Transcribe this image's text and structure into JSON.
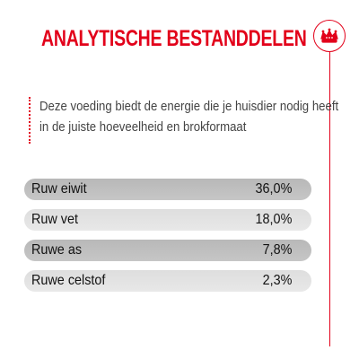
{
  "header": {
    "title": "ANALYTISCHE BESTANDDELEN",
    "logo_icon": "crown-icon",
    "accent_color": "#e2001a"
  },
  "intro": {
    "line1": "Deze voeding biedt de energie die je huisdier nodig heeft",
    "line2": "in de juiste hoeveelheid en brokformaat"
  },
  "constituents": [
    {
      "label": "Ruw eiwit",
      "value": "36,0%"
    },
    {
      "label": "Ruw vet",
      "value": "18,0%"
    },
    {
      "label": "Ruwe as",
      "value": "7,8%"
    },
    {
      "label": "Ruwe celstof",
      "value": "2,3%"
    }
  ]
}
